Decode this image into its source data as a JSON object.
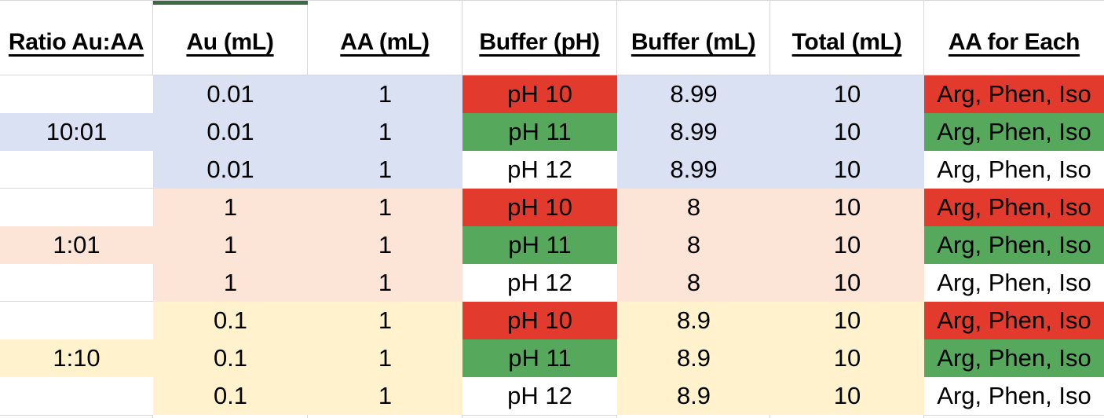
{
  "colors": {
    "white": "#ffffff",
    "red": "#e23a2c",
    "green": "#56a85c",
    "lavender": "#d9e1f2",
    "peach": "#fce4d6",
    "yellow": "#fff2cc",
    "top_strip_green": "#3a6b45",
    "gridline": "#d6d6d6",
    "text": "#000000"
  },
  "table": {
    "columns": [
      {
        "id": "ratio",
        "label": "Ratio Au:AA"
      },
      {
        "id": "au-ml",
        "label": "Au (mL)"
      },
      {
        "id": "aa-ml",
        "label": "AA (mL)"
      },
      {
        "id": "buffer-ph",
        "label": "Buffer (pH)"
      },
      {
        "id": "buffer-ml",
        "label": "Buffer (mL)"
      },
      {
        "id": "total-ml",
        "label": "Total (mL)"
      },
      {
        "id": "aa-for-each",
        "label": "AA for Each"
      }
    ],
    "rows": [
      {
        "ratio": "",
        "ratio_fill": "white",
        "group_fill": "lavender",
        "au": "0.01",
        "aa": "1",
        "ph": "pH 10",
        "ph_fill": "red",
        "buffer_ml": "8.99",
        "total": "10",
        "aa_for_each": "Arg, Phen, Iso",
        "aa_fill": "red"
      },
      {
        "ratio": "10:01",
        "ratio_fill": "lavender",
        "group_fill": "lavender",
        "au": "0.01",
        "aa": "1",
        "ph": "pH 11",
        "ph_fill": "green",
        "buffer_ml": "8.99",
        "total": "10",
        "aa_for_each": "Arg, Phen, Iso",
        "aa_fill": "green"
      },
      {
        "ratio": "",
        "ratio_fill": "white",
        "group_fill": "lavender",
        "au": "0.01",
        "aa": "1",
        "ph": "pH 12",
        "ph_fill": "white",
        "buffer_ml": "8.99",
        "total": "10",
        "aa_for_each": "Arg, Phen, Iso",
        "aa_fill": "white"
      },
      {
        "ratio": "",
        "ratio_fill": "white",
        "group_fill": "peach",
        "au": "1",
        "aa": "1",
        "ph": "pH 10",
        "ph_fill": "red",
        "buffer_ml": "8",
        "total": "10",
        "aa_for_each": "Arg, Phen, Iso",
        "aa_fill": "red"
      },
      {
        "ratio": "1:01",
        "ratio_fill": "peach",
        "group_fill": "peach",
        "au": "1",
        "aa": "1",
        "ph": "pH 11",
        "ph_fill": "green",
        "buffer_ml": "8",
        "total": "10",
        "aa_for_each": "Arg, Phen, Iso",
        "aa_fill": "green"
      },
      {
        "ratio": "",
        "ratio_fill": "white",
        "group_fill": "peach",
        "au": "1",
        "aa": "1",
        "ph": "pH 12",
        "ph_fill": "white",
        "buffer_ml": "8",
        "total": "10",
        "aa_for_each": "Arg, Phen, Iso",
        "aa_fill": "white"
      },
      {
        "ratio": "",
        "ratio_fill": "white",
        "group_fill": "yellow",
        "au": "0.1",
        "aa": "1",
        "ph": "pH 10",
        "ph_fill": "red",
        "buffer_ml": "8.9",
        "total": "10",
        "aa_for_each": "Arg, Phen, Iso",
        "aa_fill": "red"
      },
      {
        "ratio": "1:10",
        "ratio_fill": "yellow",
        "group_fill": "yellow",
        "au": "0.1",
        "aa": "1",
        "ph": "pH 11",
        "ph_fill": "green",
        "buffer_ml": "8.9",
        "total": "10",
        "aa_for_each": "Arg, Phen, Iso",
        "aa_fill": "green"
      },
      {
        "ratio": "",
        "ratio_fill": "white",
        "group_fill": "yellow",
        "au": "0.1",
        "aa": "1",
        "ph": "pH 12",
        "ph_fill": "white",
        "buffer_ml": "8.9",
        "total": "10",
        "aa_for_each": "Arg, Phen, Iso",
        "aa_fill": "white"
      }
    ]
  }
}
